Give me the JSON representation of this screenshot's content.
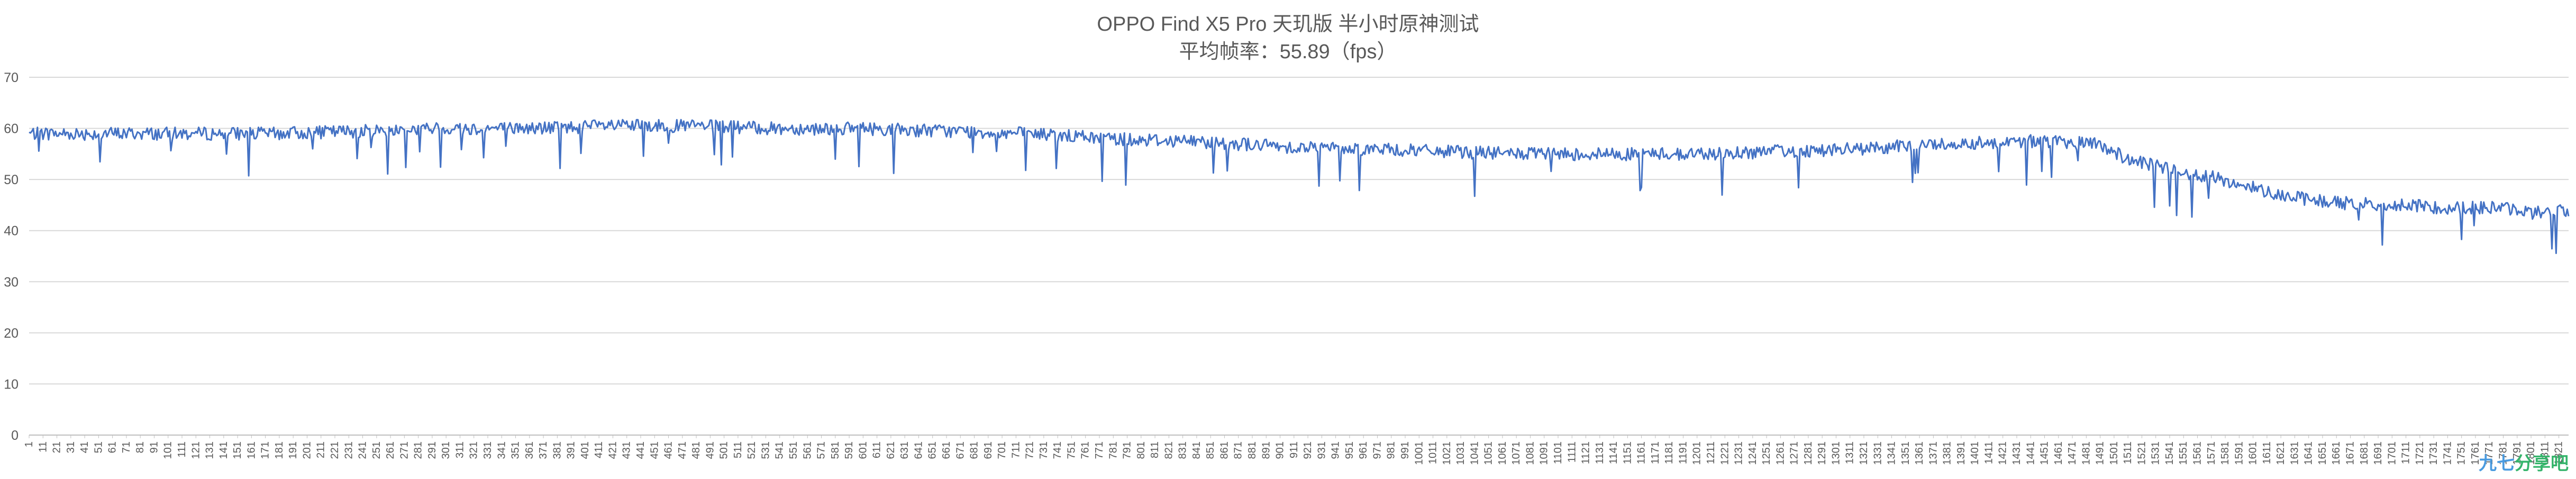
{
  "chart_data": {
    "type": "line",
    "title": "OPPO Find X5 Pro 天玑版 半小时原神测试",
    "subtitle": "平均帧率：55.89（fps）",
    "xlabel": "",
    "ylabel": "",
    "ylim": [
      0,
      70
    ],
    "yticks": [
      0,
      10,
      20,
      30,
      40,
      50,
      60,
      70
    ],
    "x_range": [
      1,
      1828
    ],
    "x_tick_start": 1,
    "x_tick_step": 10,
    "grid": true,
    "legend": "none",
    "line_color": "#4472c4",
    "series": [
      {
        "x": [
          1,
          60,
          120,
          180,
          240,
          300,
          360,
          420,
          480,
          540,
          600,
          660,
          720,
          780,
          840,
          900,
          960,
          1020,
          1080,
          1140,
          1200,
          1260,
          1320,
          1380,
          1440,
          1490,
          1510,
          1540,
          1570,
          1600,
          1630,
          1660,
          1700,
          1740,
          1780,
          1800,
          1828
        ],
        "y": [
          59,
          59,
          59,
          59,
          59.5,
          60,
          60,
          60.5,
          60.5,
          60,
          60,
          59.5,
          59,
          58,
          57.5,
          56.5,
          56,
          55.5,
          55,
          55,
          55,
          55.5,
          56,
          57,
          57.5,
          57,
          54,
          52,
          50.5,
          48.5,
          46.5,
          45.5,
          45,
          44.5,
          44.5,
          43.5,
          44
        ]
      }
    ]
  },
  "watermark": {
    "part1": "九七",
    "part2": "分享吧"
  }
}
